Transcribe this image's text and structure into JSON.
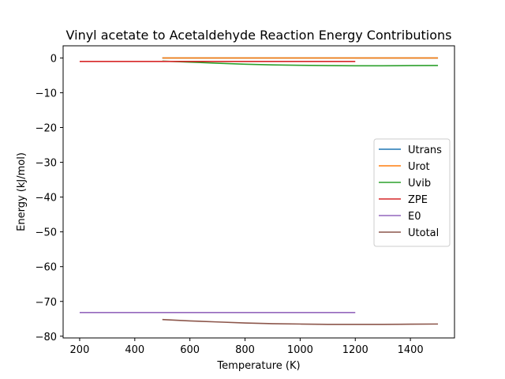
{
  "chart_data": {
    "type": "line",
    "title": "Vinyl acetate to Acetaldehyde Reaction Energy Contributions",
    "xlabel": "Temperature (K)",
    "ylabel": "Energy (kJ/mol)",
    "xlim": [
      140,
      1560
    ],
    "ylim": [
      -80.5,
      3.5
    ],
    "xticks": [
      200,
      400,
      600,
      800,
      1000,
      1200,
      1400
    ],
    "yticks": [
      0,
      -10,
      -20,
      -30,
      -40,
      -50,
      -60,
      -70,
      -80
    ],
    "xtick_labels": [
      "200",
      "400",
      "600",
      "800",
      "1000",
      "1200",
      "1400"
    ],
    "ytick_labels": [
      "0",
      "−10",
      "−20",
      "−30",
      "−40",
      "−50",
      "−60",
      "−70",
      "−80"
    ],
    "grid": false,
    "legend_placement": "center-right",
    "series": [
      {
        "name": "Utrans",
        "color": "#1f77b4",
        "x": [
          500,
          700,
          900,
          1100,
          1300,
          1500
        ],
        "y": [
          0,
          0,
          0,
          0,
          0,
          0
        ]
      },
      {
        "name": "Urot",
        "color": "#ff7f0e",
        "x": [
          500,
          700,
          900,
          1100,
          1300,
          1500
        ],
        "y": [
          0,
          0,
          0,
          0,
          0,
          0
        ]
      },
      {
        "name": "Uvib",
        "color": "#2ca02c",
        "x": [
          500,
          600,
          700,
          800,
          900,
          1000,
          1100,
          1200,
          1300,
          1400,
          1500
        ],
        "y": [
          -0.9,
          -1.2,
          -1.5,
          -1.8,
          -2.0,
          -2.1,
          -2.2,
          -2.25,
          -2.25,
          -2.2,
          -2.15
        ]
      },
      {
        "name": "ZPE",
        "color": "#d62728",
        "x": [
          200,
          400,
          600,
          800,
          1000,
          1200
        ],
        "y": [
          -1,
          -1,
          -1,
          -1,
          -1,
          -1
        ]
      },
      {
        "name": "E0",
        "color": "#9467bd",
        "x": [
          200,
          400,
          600,
          800,
          1000,
          1200
        ],
        "y": [
          -73.2,
          -73.2,
          -73.2,
          -73.2,
          -73.2,
          -73.2
        ]
      },
      {
        "name": "Utotal",
        "color": "#8c564b",
        "x": [
          500,
          600,
          700,
          800,
          900,
          1000,
          1100,
          1200,
          1300,
          1400,
          1500
        ],
        "y": [
          -75.2,
          -75.6,
          -75.9,
          -76.2,
          -76.4,
          -76.5,
          -76.6,
          -76.6,
          -76.6,
          -76.55,
          -76.5
        ]
      }
    ]
  }
}
